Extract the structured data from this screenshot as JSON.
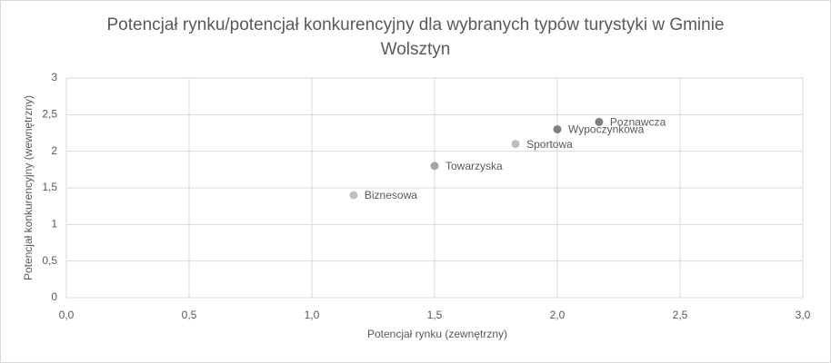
{
  "chart_data": {
    "type": "scatter",
    "title": "Potencjał rynku/potencjał konkurencyjny dla wybranych typów turystyki w Gminie Wolsztyn",
    "x_label": "Potencjał rynku (zewnętrzny)",
    "y_label": "Potencjał konkurencyjny (wewnętrzny)",
    "point_labels": [
      "Biznesowa",
      "Towarzyska",
      "Sportowa",
      "Wypoczynkowa",
      "Poznawcza"
    ],
    "x": [
      1.17,
      1.5,
      1.83,
      2.0,
      2.17
    ],
    "values": [
      1.4,
      1.8,
      2.1,
      2.3,
      2.4
    ],
    "colors": [
      "#bfbfbf",
      "#a5a5a5",
      "#bfbfbf",
      "#808080",
      "#7f7f7f"
    ],
    "xlim": [
      0,
      3
    ],
    "xticks": [
      {
        "value": 0,
        "label": "0,0"
      },
      {
        "value": 0.5,
        "label": "0,5"
      },
      {
        "value": 1,
        "label": "1,0"
      },
      {
        "value": 1.5,
        "label": "1,5"
      },
      {
        "value": 2,
        "label": "2,0"
      },
      {
        "value": 2.5,
        "label": "2,5"
      },
      {
        "value": 3,
        "label": "3,0"
      }
    ],
    "ylim": [
      0,
      3
    ],
    "yticks": [
      0,
      {
        "value": 0.5,
        "label": "0,5"
      },
      1,
      {
        "value": 1.5,
        "label": "1,5"
      },
      2,
      {
        "value": 2.5,
        "label": "2,5"
      },
      3
    ],
    "grid": true
  }
}
